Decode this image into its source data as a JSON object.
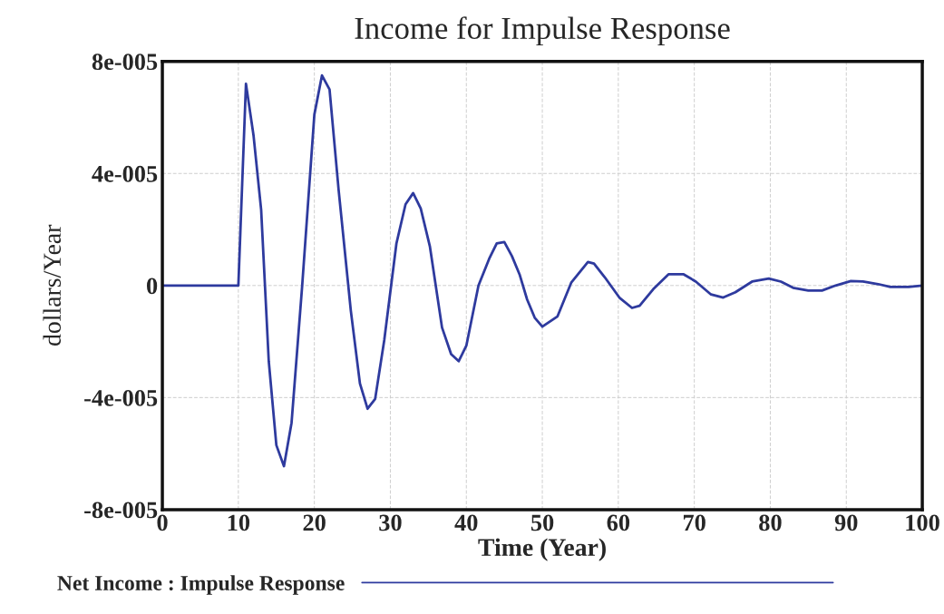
{
  "chart_data": {
    "type": "line",
    "title": "Income for Impulse Response",
    "xlabel": "Time (Year)",
    "ylabel": "dollars/Year",
    "xlim": [
      0,
      100
    ],
    "xticks": [
      0,
      10,
      20,
      30,
      40,
      50,
      60,
      70,
      80,
      90,
      100
    ],
    "ylim": [
      -8e-05,
      8e-05
    ],
    "yticks": [
      {
        "value": -8e-05,
        "label": "-8e-005"
      },
      {
        "value": -4e-05,
        "label": "-4e-005"
      },
      0,
      {
        "value": 4e-05,
        "label": "4e-005"
      },
      {
        "value": 8e-05,
        "label": "8e-005"
      }
    ],
    "grid": true,
    "legend": "bottom",
    "marker": "none",
    "line_style": "solid",
    "series": [
      {
        "name": "Net Income : Impulse Response",
        "color": "#2e3a9e",
        "x": [
          0,
          10,
          11,
          12,
          13,
          14,
          15,
          16,
          17,
          18.4,
          20,
          21,
          22,
          23.2,
          24.8,
          26,
          27,
          28,
          29.2,
          30.8,
          32,
          33,
          34,
          35.2,
          36.8,
          38,
          39,
          40,
          41.6,
          43,
          44,
          45,
          46,
          47,
          48,
          49,
          50,
          52,
          53.8,
          56,
          56.8,
          58.2,
          60.2,
          61.8,
          62.8,
          64.6,
          66.6,
          68.6,
          70.2,
          72.2,
          73.8,
          75.4,
          77.6,
          79.8,
          81.4,
          83,
          85,
          86.8,
          88.6,
          90.6,
          92.2,
          94.2,
          95.8,
          98.2,
          100
        ],
        "values": [
          0,
          0,
          7.2e-05,
          5.35e-05,
          2.7e-05,
          -2.7e-05,
          -5.7e-05,
          -6.45e-05,
          -4.9e-05,
          0,
          6.1e-05,
          7.5e-05,
          7e-05,
          3.4e-05,
          -9e-06,
          -3.5e-05,
          -4.4e-05,
          -4.05e-05,
          -1.95e-05,
          1.5e-05,
          2.9e-05,
          3.3e-05,
          2.75e-05,
          1.4e-05,
          -1.5e-05,
          -2.45e-05,
          -2.7e-05,
          -2.15e-05,
          0,
          9.5e-06,
          1.5e-05,
          1.55e-05,
          1.05e-05,
          4e-06,
          -5e-06,
          -1.15e-05,
          -1.47e-05,
          -1.1e-05,
          1e-06,
          8.4e-06,
          7.8e-06,
          3e-06,
          -4.5e-06,
          -8e-06,
          -7.2e-06,
          -1.3e-06,
          4e-06,
          4e-06,
          1.4e-06,
          -3.2e-06,
          -4.3e-06,
          -2.4e-06,
          1.4e-06,
          2.5e-06,
          1.4e-06,
          -8e-07,
          -1.8e-06,
          -1.8e-06,
          0,
          1.6e-06,
          1.4e-06,
          5e-07,
          -5e-07,
          -5e-07,
          0
        ]
      }
    ]
  }
}
